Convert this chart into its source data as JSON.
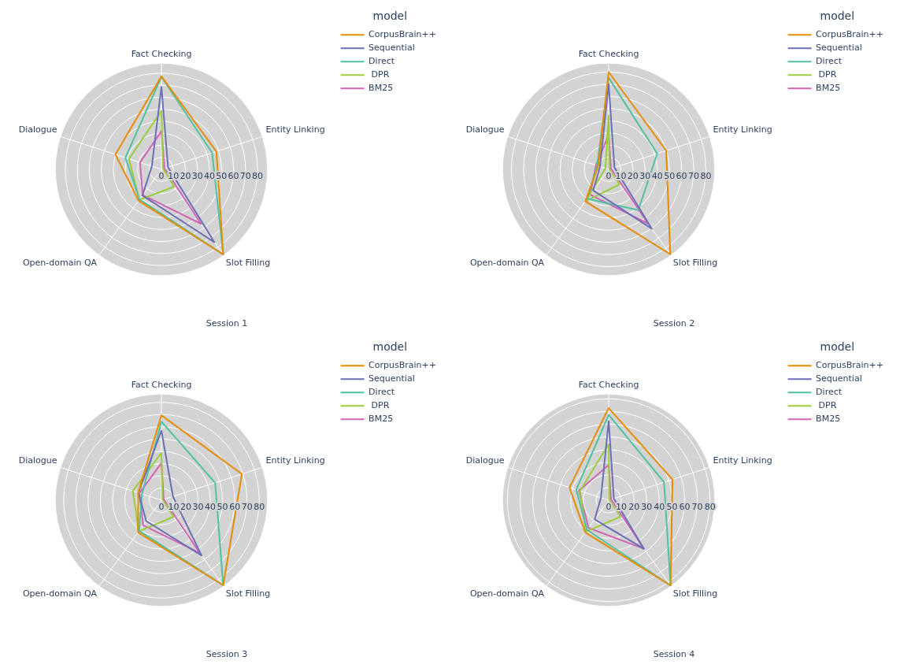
{
  "chart_data": [
    {
      "type": "radar",
      "title": "Session 1",
      "legend_title": "model",
      "legend": "right",
      "grid": true,
      "categories": [
        "Fact Checking",
        "Entity Linking",
        "Slot Filling",
        "Open-domain QA",
        "Dialogue"
      ],
      "ylim": [
        0,
        88
      ],
      "yticks": [
        0,
        10,
        20,
        30,
        40,
        50,
        60,
        70,
        80
      ],
      "series": [
        {
          "name": "CorpusBrain++",
          "color": "#e68a00",
          "values": [
            77.4,
            48.1,
            87.5,
            32.3,
            40.3
          ]
        },
        {
          "name": "Sequential",
          "color": "#6b6fb5",
          "values": [
            68.7,
            5.8,
            74.8,
            26.9,
            8.4
          ]
        },
        {
          "name": "Direct",
          "color": "#4fc0a0",
          "values": [
            77,
            44.4,
            87.5,
            31,
            31.5
          ]
        },
        {
          "name": " DPR",
          "color": "#9ccc3a",
          "values": [
            48.7,
            1.5,
            17.8,
            31.4,
            28.4
          ]
        },
        {
          "name": "BM25",
          "color": "#d264b6",
          "values": [
            31.7,
            2.7,
            55.9,
            26.4,
            18.7
          ]
        }
      ]
    },
    {
      "type": "radar",
      "title": "Session 2",
      "legend_title": "model",
      "legend": "right",
      "grid": true,
      "categories": [
        "Fact Checking",
        "Entity Linking",
        "Slot Filling",
        "Open-domain QA",
        "Dialogue"
      ],
      "ylim": [
        0,
        87
      ],
      "yticks": [
        0,
        10,
        20,
        30,
        40,
        50,
        60,
        70,
        80
      ],
      "series": [
        {
          "name": "CorpusBrain++",
          "color": "#e68a00",
          "values": [
            80,
            49.8,
            86.3,
            32.6,
            9
          ]
        },
        {
          "name": "Sequential",
          "color": "#6b6fb5",
          "values": [
            70.3,
            5,
            60.4,
            21.5,
            7.5
          ]
        },
        {
          "name": "Direct",
          "color": "#4fc0a0",
          "values": [
            75.4,
            42,
            41.5,
            29.9,
            10
          ]
        },
        {
          "name": " DPR",
          "color": "#9ccc3a",
          "values": [
            44.3,
            0.5,
            15.2,
            32.4,
            2.8
          ]
        },
        {
          "name": "BM25",
          "color": "#d264b6",
          "values": [
            28.3,
            2,
            55.1,
            25.7,
            11
          ]
        }
      ]
    },
    {
      "type": "radar",
      "title": "Session 3",
      "legend_title": "model",
      "legend": "right",
      "grid": true,
      "categories": [
        "Fact Checking",
        "Entity Linking",
        "Slot Filling",
        "Open-domain QA",
        "Dialogue"
      ],
      "ylim": [
        0,
        86.5
      ],
      "yticks": [
        0,
        10,
        20,
        30,
        40,
        50,
        60,
        70,
        80
      ],
      "series": [
        {
          "name": "CorpusBrain++",
          "color": "#e68a00",
          "values": [
            69.4,
            69.2,
            86,
            32.5,
            20
          ]
        },
        {
          "name": "Sequential",
          "color": "#6b6fb5",
          "values": [
            56.9,
            9.9,
            55.8,
            21.1,
            19.8
          ]
        },
        {
          "name": "Direct",
          "color": "#4fc0a0",
          "values": [
            64.3,
            46.2,
            86,
            31,
            16.7
          ]
        },
        {
          "name": " DPR",
          "color": "#9ccc3a",
          "values": [
            38.6,
            1,
            16.7,
            31.5,
            24.6
          ]
        },
        {
          "name": "BM25",
          "color": "#d264b6",
          "values": [
            30.4,
            2,
            53.2,
            25.4,
            18.9
          ]
        }
      ]
    },
    {
      "type": "radar",
      "title": "Session 4",
      "legend_title": "model",
      "legend": "right",
      "grid": true,
      "categories": [
        "Fact Checking",
        "Entity Linking",
        "Slot Filling",
        "Open-domain QA",
        "Dialogue"
      ],
      "ylim": [
        0,
        83.5
      ],
      "yticks": [
        0,
        10,
        20,
        30,
        40,
        50,
        60,
        70,
        80
      ],
      "series": [
        {
          "name": "CorpusBrain++",
          "color": "#e68a00",
          "values": [
            72.7,
            53,
            83.2,
            31.4,
            32.5
          ]
        },
        {
          "name": "Sequential",
          "color": "#6b6fb5",
          "values": [
            62.5,
            4.3,
            47.4,
            18.8,
            6.4
          ]
        },
        {
          "name": "Direct",
          "color": "#4fc0a0",
          "values": [
            67.4,
            46,
            83.2,
            29,
            26.9
          ]
        },
        {
          "name": " DPR",
          "color": "#9ccc3a",
          "values": [
            44.3,
            0.5,
            16.1,
            30.6,
            23.8
          ]
        },
        {
          "name": "BM25",
          "color": "#d264b6",
          "values": [
            27.8,
            2,
            47.4,
            27,
            24.7
          ]
        }
      ]
    }
  ]
}
